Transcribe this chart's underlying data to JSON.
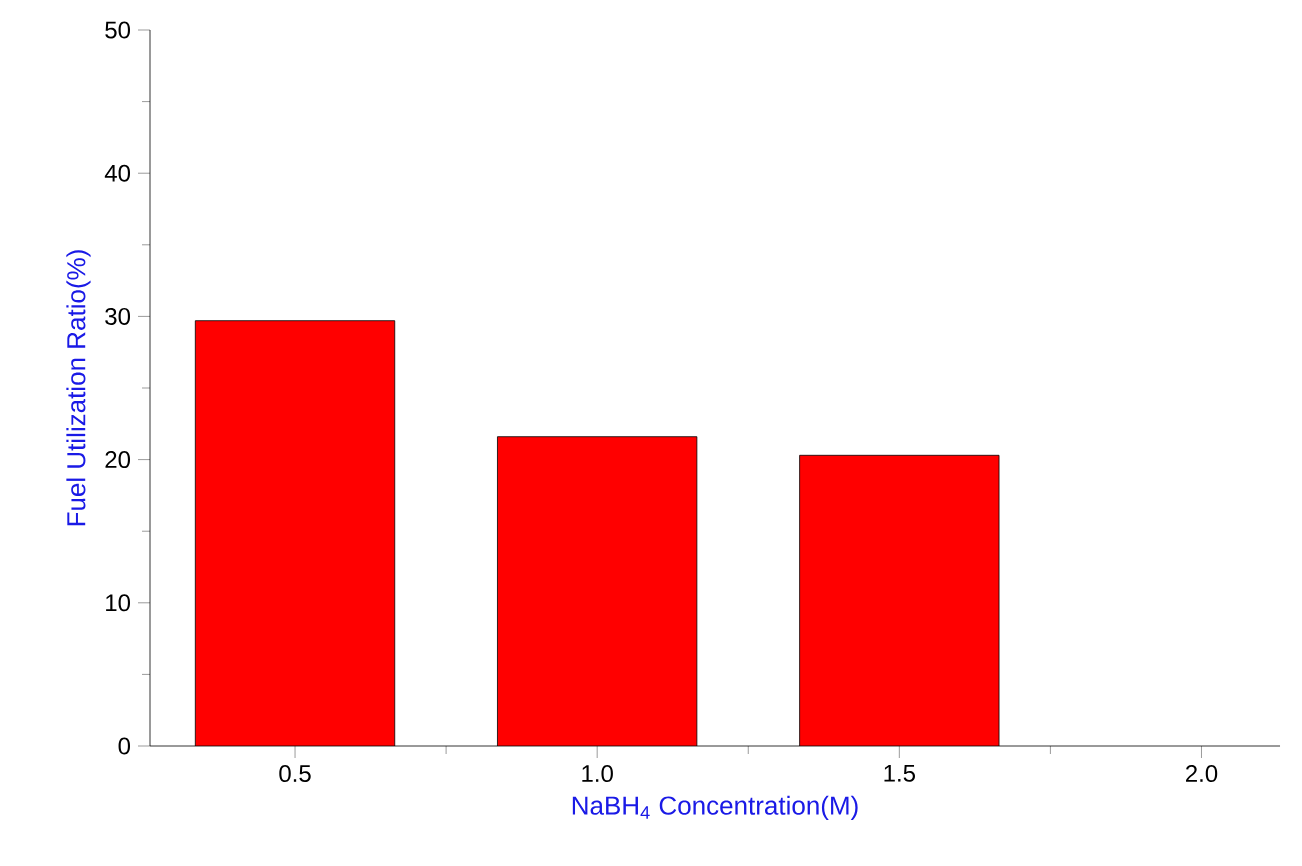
{
  "chart_data": {
    "type": "bar",
    "xlabel": "NaBH$_{4}$ Concentration(M)",
    "ylabel": "Fuel Utilization Ratio(%)",
    "categories": [
      "0.5",
      "1.0",
      "1.5",
      "2.0"
    ],
    "values": [
      29.7,
      21.6,
      20.3,
      null
    ],
    "color": "#ff0000",
    "ylim": [
      0,
      50
    ],
    "yticks": [
      0,
      10,
      20,
      30,
      40,
      50
    ],
    "grid": false
  }
}
